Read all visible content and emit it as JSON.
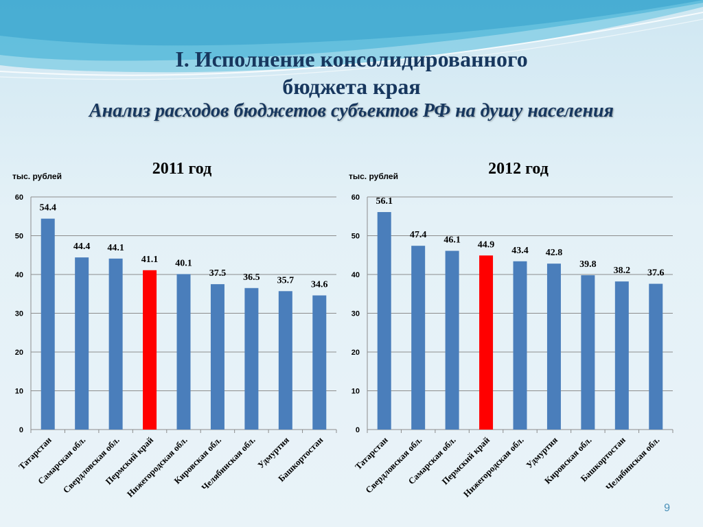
{
  "title_line1": "I. Исполнение консолидированного",
  "title_line2": "бюджета края",
  "subtitle": "Анализ расходов бюджетов субъектов РФ на душу населения",
  "page_number": "9",
  "colors": {
    "bar": "#4a7ebb",
    "highlight": "#ff0000",
    "title": "#17375e"
  },
  "chart_data": [
    {
      "type": "bar",
      "title": "2011 год",
      "ylabel": "тыс. рублей",
      "ylim": [
        0,
        60
      ],
      "yticks": [
        0,
        10,
        20,
        30,
        40,
        50,
        60
      ],
      "grid": true,
      "highlight_index": 3,
      "categories": [
        "Татарстан",
        "Самарская обл.",
        "Свердловская обл.",
        "Пермский край",
        "Нижегородская обл.",
        "Кировская обл.",
        "Челябинская обл.",
        "Удмуртия",
        "Башкортостан"
      ],
      "values": [
        54.4,
        44.4,
        44.1,
        41.1,
        40.1,
        37.5,
        36.5,
        35.7,
        34.6
      ]
    },
    {
      "type": "bar",
      "title": "2012 год",
      "ylabel": "тыс. рублей",
      "ylim": [
        0,
        60
      ],
      "yticks": [
        0,
        10,
        20,
        30,
        40,
        50,
        60
      ],
      "grid": true,
      "highlight_index": 3,
      "categories": [
        "Татарстан",
        "Свердловская обл.",
        "Самарская обл.",
        "Пермский край",
        "Нижегородская обл.",
        "Удмуртия",
        "Кировская обл.",
        "Башкортостан",
        "Челябинская обл."
      ],
      "values": [
        56.1,
        47.4,
        46.1,
        44.9,
        43.4,
        42.8,
        39.8,
        38.2,
        37.6
      ]
    }
  ]
}
